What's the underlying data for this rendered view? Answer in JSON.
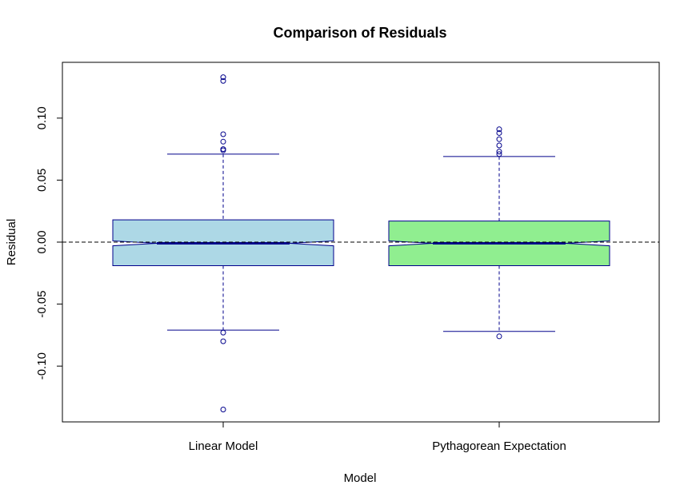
{
  "chart_data": {
    "type": "box",
    "title": "Comparison of Residuals",
    "xlabel": "Model",
    "ylabel": "Residual",
    "categories": [
      "Linear Model",
      "Pythagorean Expectation"
    ],
    "ylim": [
      -0.145,
      0.145
    ],
    "yticks": [
      -0.1,
      -0.05,
      0.0,
      0.05,
      0.1
    ],
    "ytick_labels": [
      "-0.10",
      "-0.05",
      "0.00",
      "0.05",
      "0.10"
    ],
    "reference_line": 0.0,
    "notched": true,
    "boxes": [
      {
        "name": "Linear Model",
        "fill": "#add8e6",
        "whisker_low": -0.071,
        "q1": -0.019,
        "median": -0.001,
        "q3": 0.018,
        "whisker_high": 0.071,
        "notch_low": -0.003,
        "notch_high": 0.001,
        "outliers": [
          0.133,
          0.13,
          0.087,
          0.081,
          0.075,
          0.074,
          -0.073,
          -0.08,
          -0.135
        ]
      },
      {
        "name": "Pythagorean Expectation",
        "fill": "#90ee90",
        "whisker_low": -0.072,
        "q1": -0.019,
        "median": -0.001,
        "q3": 0.017,
        "whisker_high": 0.069,
        "notch_low": -0.003,
        "notch_high": 0.001,
        "outliers": [
          0.091,
          0.088,
          0.083,
          0.078,
          0.073,
          0.071,
          -0.076
        ]
      }
    ],
    "colors": {
      "border": "#00008b",
      "median": "#00008b",
      "frame": "#000000"
    }
  }
}
